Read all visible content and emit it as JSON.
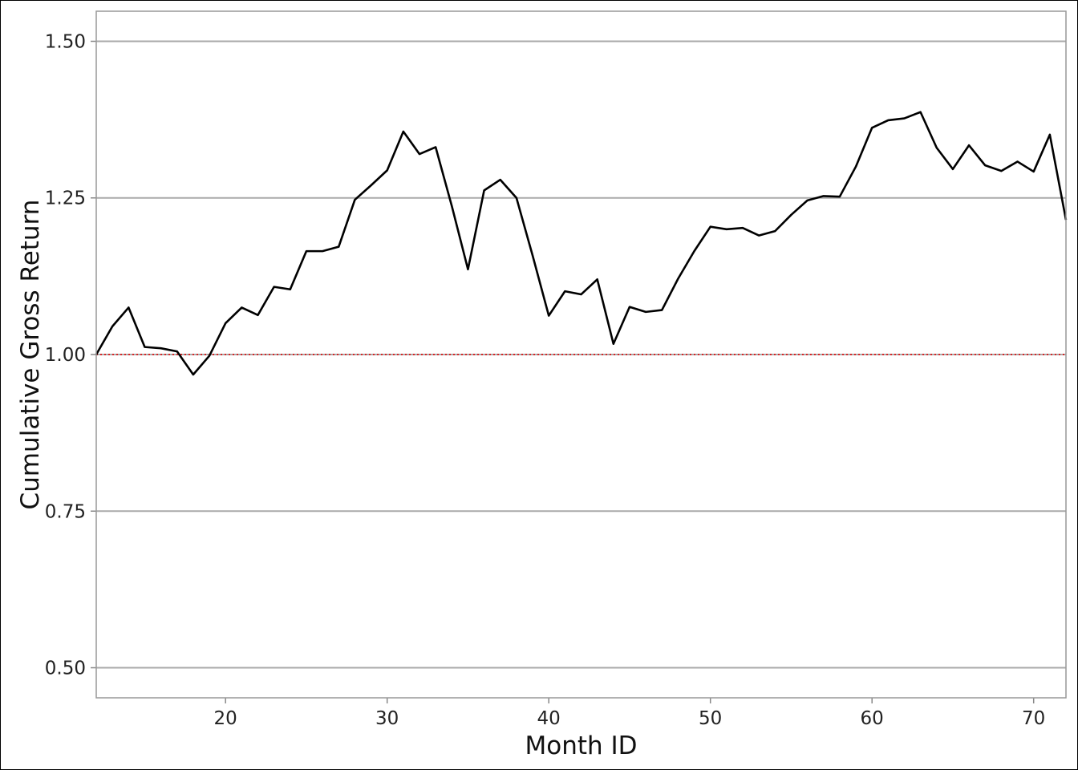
{
  "chart_data": {
    "type": "line",
    "title": "",
    "xlabel": "Month ID",
    "ylabel": "Cumulative Gross Return",
    "xlim": [
      12,
      72
    ],
    "ylim": [
      0.452,
      1.548
    ],
    "x_ticks": [
      20,
      30,
      40,
      50,
      60,
      70
    ],
    "y_ticks": [
      0.5,
      0.75,
      1.0,
      1.25,
      1.5
    ],
    "x_tick_labels": [
      "20",
      "30",
      "40",
      "50",
      "60",
      "70"
    ],
    "y_tick_labels": [
      "0.50",
      "0.75",
      "1.00",
      "1.25",
      "1.50"
    ],
    "grid": "horizontal",
    "reference_line": {
      "y": 1.0,
      "color": "#d62728",
      "style": "dotted"
    },
    "series": [
      {
        "color": "#000000",
        "x": [
          12,
          13,
          14,
          15,
          16,
          17,
          18,
          19,
          20,
          21,
          22,
          23,
          24,
          25,
          26,
          27,
          28,
          29,
          30,
          31,
          32,
          33,
          34,
          35,
          36,
          37,
          38,
          39,
          40,
          41,
          42,
          43,
          44,
          45,
          46,
          47,
          48,
          49,
          50,
          51,
          52,
          53,
          54,
          55,
          56,
          57,
          58,
          59,
          60,
          61,
          62,
          63,
          64,
          65,
          66,
          67,
          68,
          69,
          70,
          71,
          72
        ],
        "values": [
          1.0,
          1.045,
          1.075,
          1.012,
          1.01,
          1.005,
          0.968,
          0.998,
          1.05,
          1.075,
          1.063,
          1.108,
          1.104,
          1.165,
          1.165,
          1.172,
          1.247,
          1.27,
          1.294,
          1.356,
          1.32,
          1.331,
          1.237,
          1.136,
          1.262,
          1.279,
          1.25,
          1.158,
          1.062,
          1.101,
          1.096,
          1.12,
          1.017,
          1.076,
          1.068,
          1.071,
          1.121,
          1.165,
          1.204,
          1.2,
          1.202,
          1.19,
          1.197,
          1.223,
          1.246,
          1.253,
          1.252,
          1.3,
          1.362,
          1.374,
          1.377,
          1.387,
          1.33,
          1.296,
          1.334,
          1.302,
          1.293,
          1.308,
          1.292,
          1.351,
          1.215
        ]
      }
    ]
  }
}
